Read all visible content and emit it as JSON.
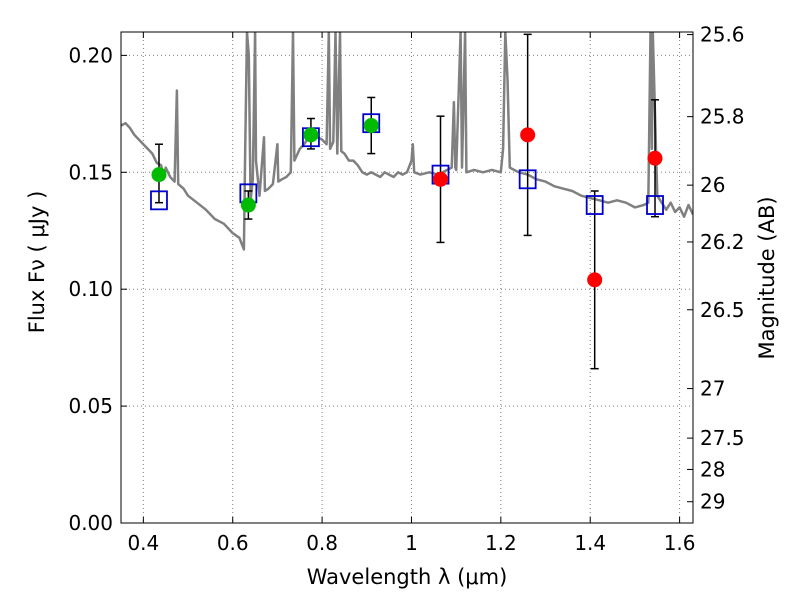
{
  "chart_data": {
    "type": "scatter",
    "title": "",
    "xlabel": "Wavelength  λ (μm)",
    "ylabel": "Flux  Fν  ( μJy )",
    "y2label": "Magnitude (AB)",
    "xlim": [
      0.35,
      1.63
    ],
    "ylim": [
      0.0,
      0.21
    ],
    "grid": true,
    "xticks": [
      0.4,
      0.6,
      0.8,
      1.0,
      1.2,
      1.4,
      1.6
    ],
    "xtick_labels": [
      "0.4",
      "0.6",
      "0.8",
      "1",
      "1.2",
      "1.4",
      "1.6"
    ],
    "yticks": [
      0.0,
      0.05,
      0.1,
      0.15,
      0.2
    ],
    "ytick_labels": [
      "0.00",
      "0.05",
      "0.10",
      "0.15",
      "0.20"
    ],
    "y2_ticks": [
      {
        "label": "25.6",
        "flux": 0.2089
      },
      {
        "label": "25.8",
        "flux": 0.1738
      },
      {
        "label": "26",
        "flux": 0.1445
      },
      {
        "label": "26.2",
        "flux": 0.1202
      },
      {
        "label": "26.5",
        "flux": 0.0912
      },
      {
        "label": "27",
        "flux": 0.0575
      },
      {
        "label": "27.5",
        "flux": 0.0363
      },
      {
        "label": "28",
        "flux": 0.0229
      },
      {
        "label": "29",
        "flux": 0.0091
      }
    ],
    "colors": {
      "spectrum": "#808080",
      "model": "#0000cc",
      "green": "#00bb00",
      "red": "#ff0000",
      "grid": "#808080"
    },
    "series": [
      {
        "kind": "model_squares",
        "x": [
          0.435,
          0.635,
          0.775,
          0.91,
          1.065,
          1.26,
          1.41,
          1.545
        ],
        "y": [
          0.138,
          0.141,
          0.165,
          0.171,
          0.149,
          0.147,
          0.136,
          0.136
        ]
      },
      {
        "kind": "green_points",
        "x": [
          0.435,
          0.635,
          0.775,
          0.91
        ],
        "y": [
          0.149,
          0.136,
          0.166,
          0.17
        ],
        "yerr_low": [
          0.137,
          0.13,
          0.16,
          0.158
        ],
        "yerr_high": [
          0.162,
          0.142,
          0.173,
          0.182
        ]
      },
      {
        "kind": "red_points",
        "x": [
          1.065,
          1.26,
          1.41,
          1.545
        ],
        "y": [
          0.147,
          0.166,
          0.104,
          0.156
        ],
        "yerr_low": [
          0.12,
          0.123,
          0.066,
          0.131
        ],
        "yerr_high": [
          0.174,
          0.209,
          0.142,
          0.181
        ]
      },
      {
        "kind": "spectrum",
        "points": [
          [
            0.35,
            0.17
          ],
          [
            0.36,
            0.171
          ],
          [
            0.37,
            0.169
          ],
          [
            0.38,
            0.166
          ],
          [
            0.39,
            0.164
          ],
          [
            0.4,
            0.162
          ],
          [
            0.41,
            0.16
          ],
          [
            0.42,
            0.158
          ],
          [
            0.43,
            0.154
          ],
          [
            0.44,
            0.153
          ],
          [
            0.445,
            0.147
          ],
          [
            0.45,
            0.152
          ],
          [
            0.46,
            0.148
          ],
          [
            0.47,
            0.146
          ],
          [
            0.475,
            0.185
          ],
          [
            0.478,
            0.145
          ],
          [
            0.49,
            0.143
          ],
          [
            0.5,
            0.14
          ],
          [
            0.52,
            0.137
          ],
          [
            0.54,
            0.134
          ],
          [
            0.56,
            0.13
          ],
          [
            0.58,
            0.128
          ],
          [
            0.6,
            0.124
          ],
          [
            0.615,
            0.122
          ],
          [
            0.625,
            0.117
          ],
          [
            0.628,
            0.16
          ],
          [
            0.632,
            0.21
          ],
          [
            0.636,
            0.2
          ],
          [
            0.64,
            0.138
          ],
          [
            0.645,
            0.147
          ],
          [
            0.65,
            0.21
          ],
          [
            0.652,
            0.155
          ],
          [
            0.66,
            0.14
          ],
          [
            0.67,
            0.165
          ],
          [
            0.672,
            0.142
          ],
          [
            0.68,
            0.143
          ],
          [
            0.69,
            0.145
          ],
          [
            0.7,
            0.162
          ],
          [
            0.702,
            0.146
          ],
          [
            0.71,
            0.147
          ],
          [
            0.72,
            0.148
          ],
          [
            0.73,
            0.15
          ],
          [
            0.735,
            0.21
          ],
          [
            0.738,
            0.155
          ],
          [
            0.75,
            0.16
          ],
          [
            0.76,
            0.162
          ],
          [
            0.77,
            0.165
          ],
          [
            0.78,
            0.166
          ],
          [
            0.79,
            0.165
          ],
          [
            0.8,
            0.164
          ],
          [
            0.81,
            0.162
          ],
          [
            0.815,
            0.21
          ],
          [
            0.818,
            0.16
          ],
          [
            0.825,
            0.163
          ],
          [
            0.83,
            0.21
          ],
          [
            0.834,
            0.158
          ],
          [
            0.84,
            0.21
          ],
          [
            0.843,
            0.159
          ],
          [
            0.85,
            0.158
          ],
          [
            0.86,
            0.155
          ],
          [
            0.87,
            0.155
          ],
          [
            0.88,
            0.153
          ],
          [
            0.89,
            0.15
          ],
          [
            0.9,
            0.149
          ],
          [
            0.91,
            0.15
          ],
          [
            0.92,
            0.149
          ],
          [
            0.93,
            0.148
          ],
          [
            0.94,
            0.15
          ],
          [
            0.95,
            0.149
          ],
          [
            0.96,
            0.148
          ],
          [
            0.97,
            0.15
          ],
          [
            0.98,
            0.149
          ],
          [
            0.99,
            0.15
          ],
          [
            1.0,
            0.155
          ],
          [
            1.003,
            0.162
          ],
          [
            1.006,
            0.15
          ],
          [
            1.02,
            0.149
          ],
          [
            1.04,
            0.15
          ],
          [
            1.06,
            0.149
          ],
          [
            1.08,
            0.151
          ],
          [
            1.09,
            0.152
          ],
          [
            1.095,
            0.18
          ],
          [
            1.098,
            0.152
          ],
          [
            1.1,
            0.151
          ],
          [
            1.11,
            0.21
          ],
          [
            1.113,
            0.152
          ],
          [
            1.12,
            0.21
          ],
          [
            1.123,
            0.15
          ],
          [
            1.14,
            0.151
          ],
          [
            1.16,
            0.15
          ],
          [
            1.18,
            0.151
          ],
          [
            1.2,
            0.15
          ],
          [
            1.205,
            0.16
          ],
          [
            1.21,
            0.21
          ],
          [
            1.215,
            0.19
          ],
          [
            1.22,
            0.152
          ],
          [
            1.24,
            0.15
          ],
          [
            1.26,
            0.149
          ],
          [
            1.28,
            0.147
          ],
          [
            1.3,
            0.146
          ],
          [
            1.32,
            0.144
          ],
          [
            1.34,
            0.143
          ],
          [
            1.36,
            0.142
          ],
          [
            1.38,
            0.14
          ],
          [
            1.4,
            0.139
          ],
          [
            1.42,
            0.138
          ],
          [
            1.44,
            0.137
          ],
          [
            1.46,
            0.138
          ],
          [
            1.48,
            0.137
          ],
          [
            1.5,
            0.135
          ],
          [
            1.52,
            0.136
          ],
          [
            1.53,
            0.137
          ],
          [
            1.535,
            0.21
          ],
          [
            1.538,
            0.16
          ],
          [
            1.54,
            0.21
          ],
          [
            1.545,
            0.175
          ],
          [
            1.55,
            0.14
          ],
          [
            1.56,
            0.137
          ],
          [
            1.57,
            0.134
          ],
          [
            1.58,
            0.137
          ],
          [
            1.59,
            0.133
          ],
          [
            1.6,
            0.135
          ],
          [
            1.61,
            0.131
          ],
          [
            1.62,
            0.136
          ],
          [
            1.63,
            0.132
          ]
        ]
      }
    ]
  }
}
